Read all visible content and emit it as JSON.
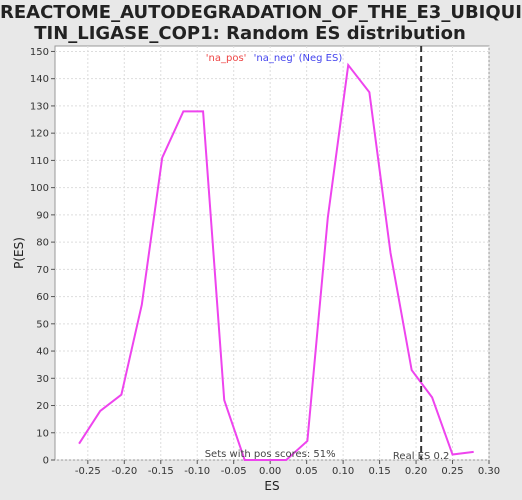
{
  "title_line1": "REACTOME_AUTODEGRADATION_OF_THE_E3_UBIQUI",
  "title_line2": "TIN_LIGASE_COP1: Random ES distribution",
  "chart_data": {
    "type": "line",
    "xlabel": "ES",
    "ylabel": "P(ES)",
    "xlim": [
      -0.295,
      0.3
    ],
    "ylim": [
      0,
      152
    ],
    "xticks": [
      "-0.25",
      "-0.20",
      "-0.15",
      "-0.10",
      "-0.05",
      "0.00",
      "0.05",
      "0.10",
      "0.15",
      "0.20",
      "0.25",
      "0.30"
    ],
    "yticks": [
      "0",
      "10",
      "20",
      "30",
      "40",
      "50",
      "60",
      "70",
      "80",
      "90",
      "100",
      "110",
      "120",
      "130",
      "140",
      "150"
    ],
    "grid": true,
    "series_color": "#ee44ee",
    "x": [
      -0.262,
      -0.233,
      -0.204,
      -0.176,
      -0.148,
      -0.119,
      -0.092,
      -0.063,
      -0.035,
      -0.007,
      0.022,
      0.051,
      0.079,
      0.107,
      0.136,
      0.165,
      0.194,
      0.222,
      0.25,
      0.279
    ],
    "y": [
      6,
      18,
      24,
      57,
      111,
      128,
      128,
      22,
      0,
      0,
      0,
      7,
      89,
      145,
      135,
      76,
      33,
      23,
      2,
      3
    ],
    "real_es": {
      "x": 0.207,
      "label": "Real ES 0.2"
    },
    "annotation": "Sets with pos scores: 51%",
    "legend": {
      "placement": "top-center",
      "pos_label": "'na_pos'",
      "pos_color": "#ee4444",
      "neg_label": "'na_neg' (Neg ES)",
      "neg_color": "#4444ee"
    }
  }
}
